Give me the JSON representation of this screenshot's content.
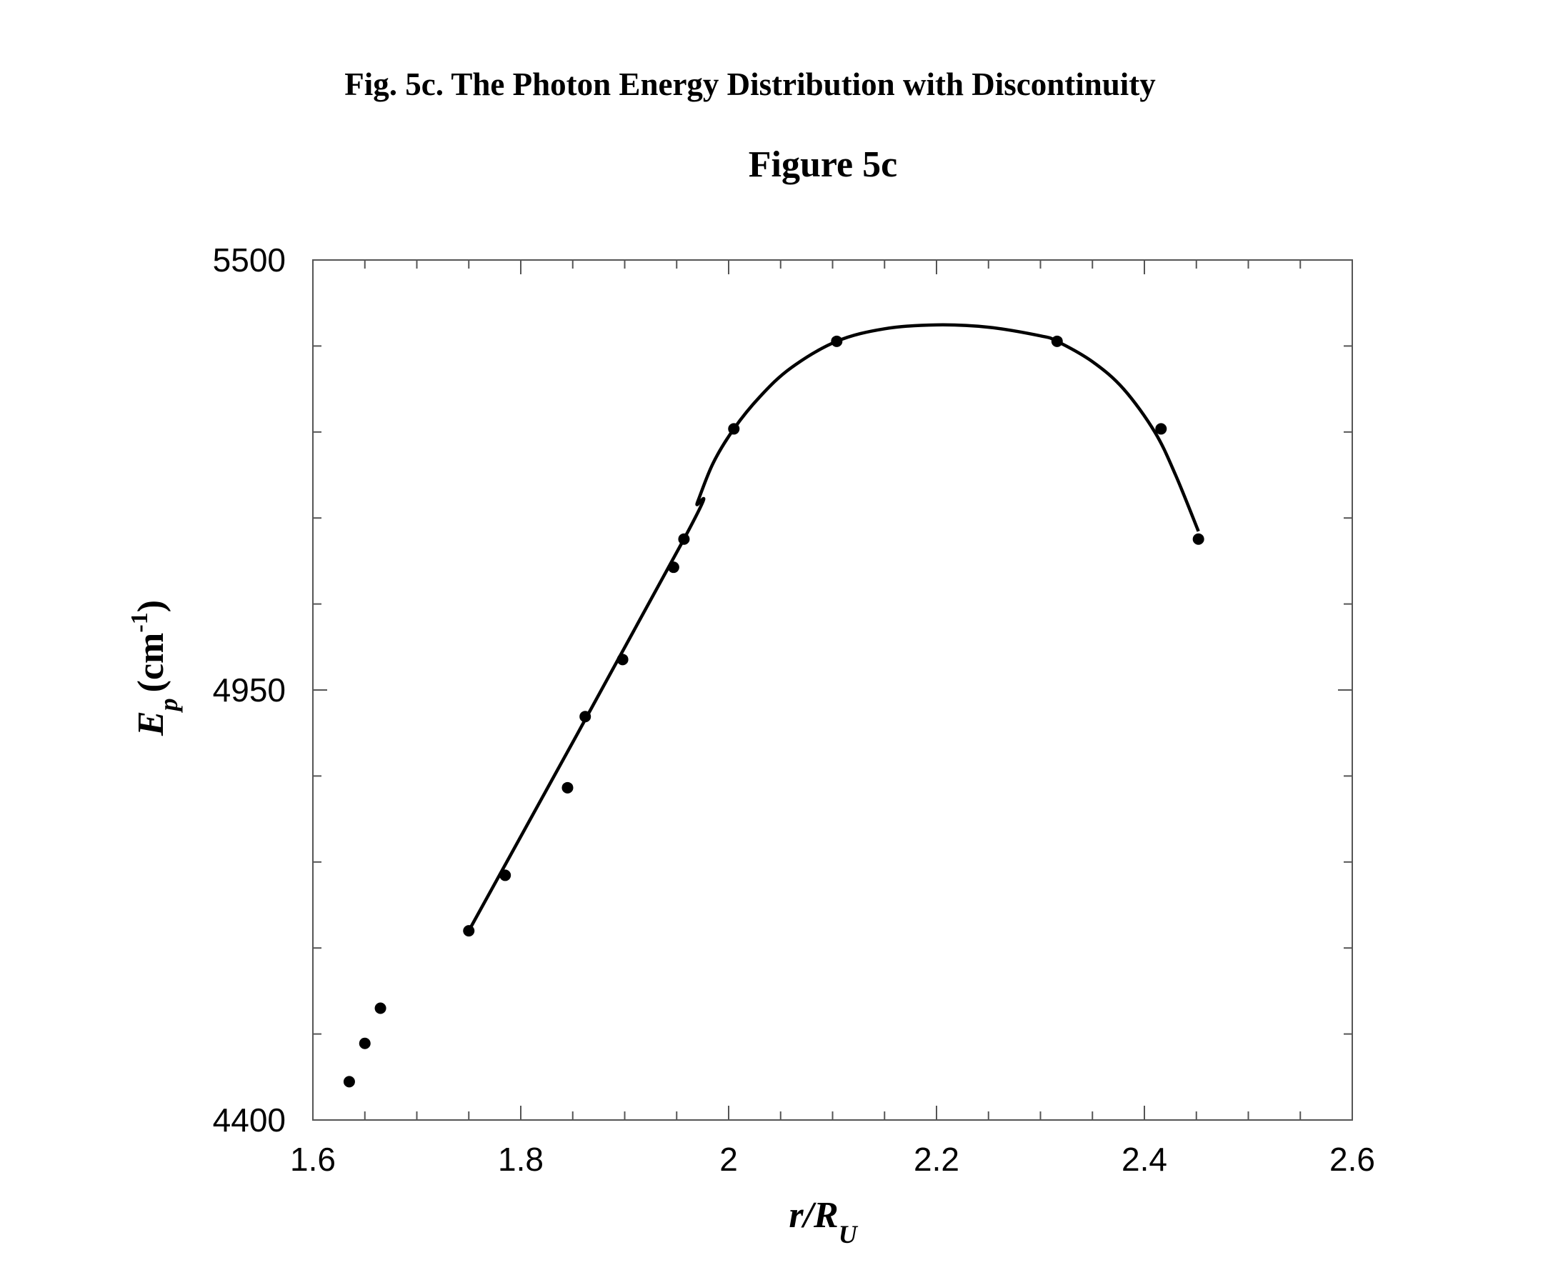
{
  "caption": "Fig. 5c. The Photon Energy Distribution with Discontinuity",
  "chart_data": {
    "type": "scatter",
    "title": "Figure 5c",
    "xlabel": "r/R",
    "xlabel_sub": "U",
    "ylabel": "E",
    "ylabel_sub": "p",
    "ylabel_unit": "(cm",
    "ylabel_unit_sup": "-1",
    "ylabel_unit_close": ")",
    "xlim": [
      1.6,
      2.6
    ],
    "ylim": [
      4400,
      5500
    ],
    "x_ticks": [
      "1.6",
      "1.8",
      "2",
      "2.2",
      "2.4",
      "2.6"
    ],
    "y_ticks": [
      "4400",
      "4950",
      "5500"
    ],
    "x_minor_step": 0.05,
    "y_minor_step": 110,
    "grid": false,
    "series": [
      {
        "kind": "points",
        "x": [
          1.635,
          1.65,
          1.665,
          1.75,
          1.785,
          1.845,
          1.862,
          1.898,
          1.947,
          1.957,
          2.005,
          2.104,
          2.316,
          2.416,
          2.452
        ],
        "y": [
          4449,
          4498,
          4543,
          4642,
          4713,
          4825,
          4916,
          4989,
          5107,
          5143,
          5284,
          5396,
          5396,
          5284,
          5143
        ]
      },
      {
        "kind": "fit-line",
        "x": [
          1.75,
          1.957,
          1.97,
          1.985,
          2.005,
          2.03,
          2.06,
          2.104,
          2.15,
          2.2,
          2.25,
          2.3,
          2.316,
          2.35,
          2.38,
          2.41,
          2.43,
          2.452
        ],
        "y": [
          4642,
          5143,
          5190,
          5240,
          5284,
          5325,
          5362,
          5396,
          5412,
          5417,
          5414,
          5403,
          5396,
          5370,
          5335,
          5280,
          5225,
          5153
        ]
      }
    ]
  },
  "colors": {
    "ink": "#000000",
    "axis": "#555555"
  }
}
